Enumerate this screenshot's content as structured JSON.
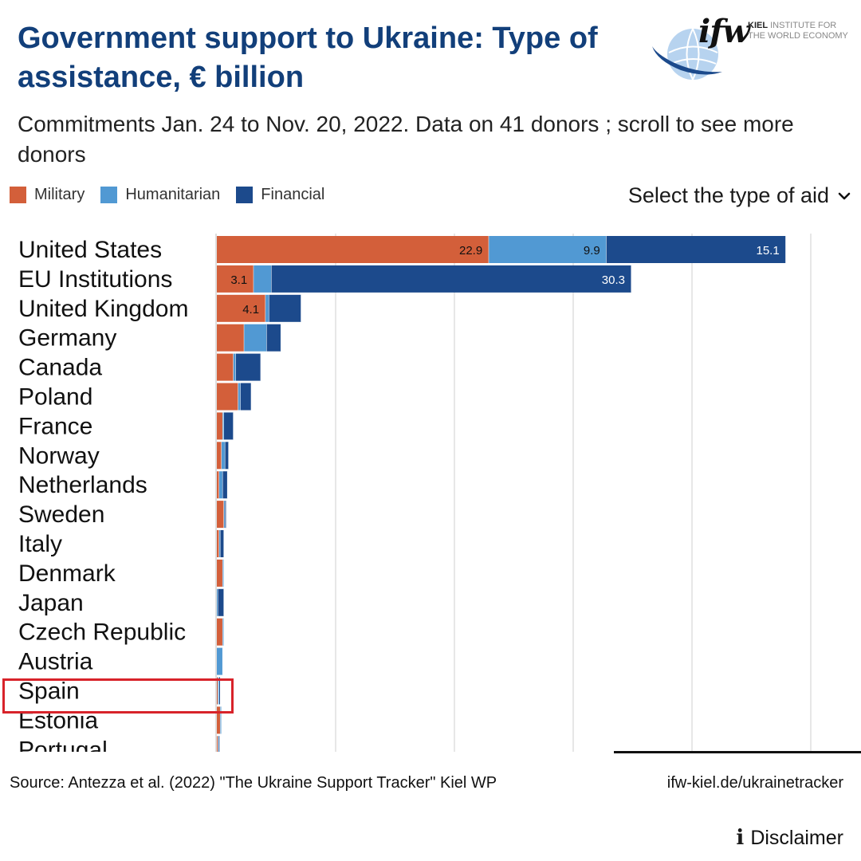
{
  "title": "Government support to Ukraine: Type of assistance, € billion",
  "subtitle": "Commitments Jan. 24 to Nov. 20, 2022. Data on 41 donors ; scroll to see more donors",
  "logo": {
    "brand": "ifw",
    "line1_bold": "KIEL",
    "line1_rest": " INSTITUTE FOR",
    "line2": "THE WORLD ECONOMY"
  },
  "legend": [
    {
      "label": "Military",
      "color": "#d35f3a"
    },
    {
      "label": "Humanitarian",
      "color": "#5199d3"
    },
    {
      "label": "Financial",
      "color": "#1c4a8c"
    }
  ],
  "select_aid": {
    "label": "Select the type of aid",
    "icon": "chevron-down-icon"
  },
  "highlighted_country": "Spain",
  "chart_data": {
    "type": "bar",
    "orientation": "horizontal",
    "stacked": true,
    "title": "Government support to Ukraine: Type of assistance, € billion",
    "xlim": [
      0,
      50
    ],
    "grid": true,
    "categories": [
      "United States",
      "EU Institutions",
      "United Kingdom",
      "Germany",
      "Canada",
      "Poland",
      "France",
      "Norway",
      "Netherlands",
      "Sweden",
      "Italy",
      "Denmark",
      "Japan",
      "Czech Republic",
      "Austria",
      "Spain",
      "Estonia",
      "Portugal"
    ],
    "series": [
      {
        "name": "Military",
        "color": "#d35f3a",
        "values": [
          22.9,
          3.1,
          4.1,
          2.3,
          1.4,
          1.8,
          0.5,
          0.4,
          0.2,
          0.6,
          0.2,
          0.5,
          0,
          0.5,
          0,
          0.1,
          0.3,
          0.1
        ]
      },
      {
        "name": "Humanitarian",
        "color": "#5199d3",
        "values": [
          9.9,
          1.5,
          0.3,
          1.9,
          0.2,
          0.2,
          0.1,
          0.3,
          0.3,
          0.1,
          0.1,
          0.1,
          0.1,
          0.1,
          0.5,
          0.1,
          0.1,
          0.05
        ]
      },
      {
        "name": "Financial",
        "color": "#1c4a8c",
        "values": [
          15.1,
          30.3,
          2.7,
          1.2,
          2.1,
          0.9,
          0.8,
          0.3,
          0.4,
          0.1,
          0.3,
          0,
          0.5,
          0,
          0,
          0.1,
          0,
          0.1
        ]
      }
    ],
    "data_labels": [
      {
        "category": "United States",
        "series": "Military",
        "text": "22.9"
      },
      {
        "category": "United States",
        "series": "Humanitarian",
        "text": "9.9"
      },
      {
        "category": "United States",
        "series": "Financial",
        "text": "15.1"
      },
      {
        "category": "EU Institutions",
        "series": "Military",
        "text": "3.1"
      },
      {
        "category": "EU Institutions",
        "series": "Financial",
        "text": "30.3"
      },
      {
        "category": "United Kingdom",
        "series": "Military",
        "text": "4.1"
      }
    ]
  },
  "footer": {
    "source": "Source: Antezza et al. (2022) \"The Ukraine Support Tracker\" Kiel WP",
    "site": "ifw-kiel.de/ukrainetracker",
    "disclaimer": "Disclaimer"
  }
}
